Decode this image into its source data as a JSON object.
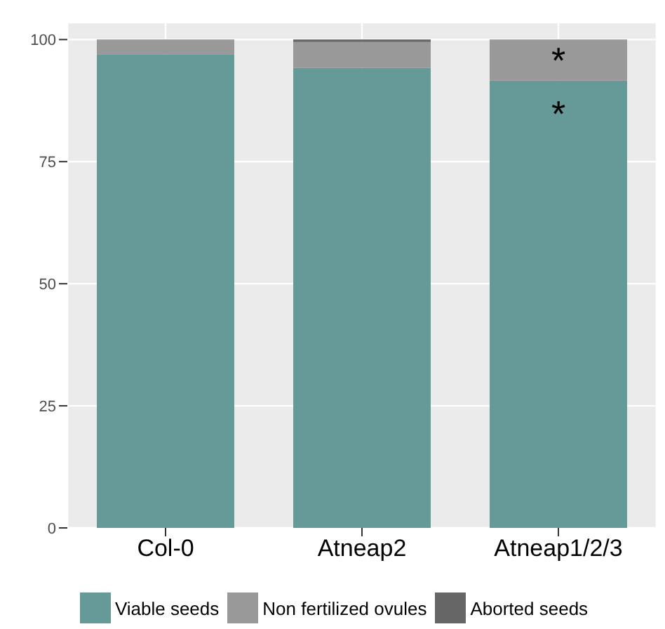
{
  "chart_data": {
    "type": "bar",
    "stacked": true,
    "categories": [
      "Col-0",
      "Atneap2",
      "Atneap1/2/3"
    ],
    "series": [
      {
        "name": "Viable seeds",
        "color": "#659a98",
        "values": [
          97,
          94.2,
          91.6
        ],
        "value_labels": [
          null,
          null,
          "*"
        ]
      },
      {
        "name": "Non fertilized ovules",
        "color": "#999999",
        "values": [
          3,
          5.3,
          8.4
        ],
        "value_labels": [
          null,
          null,
          "*"
        ]
      },
      {
        "name": "Aborted seeds",
        "color": "#666666",
        "values": [
          0,
          0.5,
          0
        ]
      }
    ],
    "ylim": [
      0,
      103.5
    ],
    "yticks": [
      0,
      25,
      50,
      75,
      100
    ],
    "grid": true,
    "legend": "bottom"
  }
}
